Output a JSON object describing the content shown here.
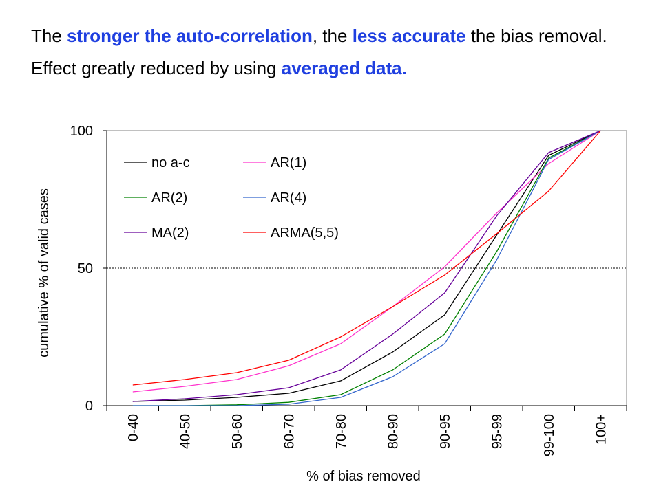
{
  "text": {
    "line1": [
      {
        "t": "The ",
        "hl": false
      },
      {
        "t": "stronger the auto-correlation",
        "hl": true
      },
      {
        "t": ", the ",
        "hl": false
      },
      {
        "t": "less accurate",
        "hl": true
      },
      {
        "t": " the bias removal.",
        "hl": false
      }
    ],
    "line2": [
      {
        "t": "Effect greatly reduced by using ",
        "hl": false
      },
      {
        "t": "averaged data.",
        "hl": true
      }
    ]
  },
  "colors": {
    "highlight": "#1f3fe0",
    "text": "#000000"
  },
  "chart_data": {
    "type": "line",
    "categories": [
      "0-40",
      "40-50",
      "50-60",
      "60-70",
      "70-80",
      "80-90",
      "90-95",
      "95-99",
      "99-100",
      "100+"
    ],
    "xlabel": "% of bias removed",
    "ylabel": "cumulative % of valid cases",
    "ylim": [
      0,
      100
    ],
    "yticks": [
      "0",
      "50",
      "100"
    ],
    "reference_line": 50,
    "legend_position": "top-left",
    "series": [
      {
        "name": "no a-c",
        "color": "#000000",
        "values": [
          1.5,
          2,
          3,
          4.5,
          9,
          19.5,
          33,
          62,
          91,
          100
        ]
      },
      {
        "name": "AR(1)",
        "color": "#ff33cc",
        "values": [
          5,
          7,
          9.5,
          14.5,
          22.5,
          36,
          50.5,
          70,
          88,
          100
        ]
      },
      {
        "name": "AR(2)",
        "color": "#008000",
        "values": [
          0,
          0,
          0.3,
          1.2,
          4,
          13,
          26,
          56,
          90,
          100
        ]
      },
      {
        "name": "AR(4)",
        "color": "#3366cc",
        "values": [
          0,
          0,
          0,
          0.5,
          3,
          10.5,
          22.5,
          53,
          89.5,
          100
        ]
      },
      {
        "name": "MA(2)",
        "color": "#660099",
        "values": [
          1.5,
          2.5,
          4,
          6.5,
          13,
          26,
          41,
          69,
          92,
          100
        ]
      },
      {
        "name": "ARMA(5,5)",
        "color": "#ff0000",
        "values": [
          7.5,
          9.5,
          12,
          16.5,
          25,
          36,
          47.5,
          62.5,
          78,
          100
        ]
      }
    ]
  }
}
